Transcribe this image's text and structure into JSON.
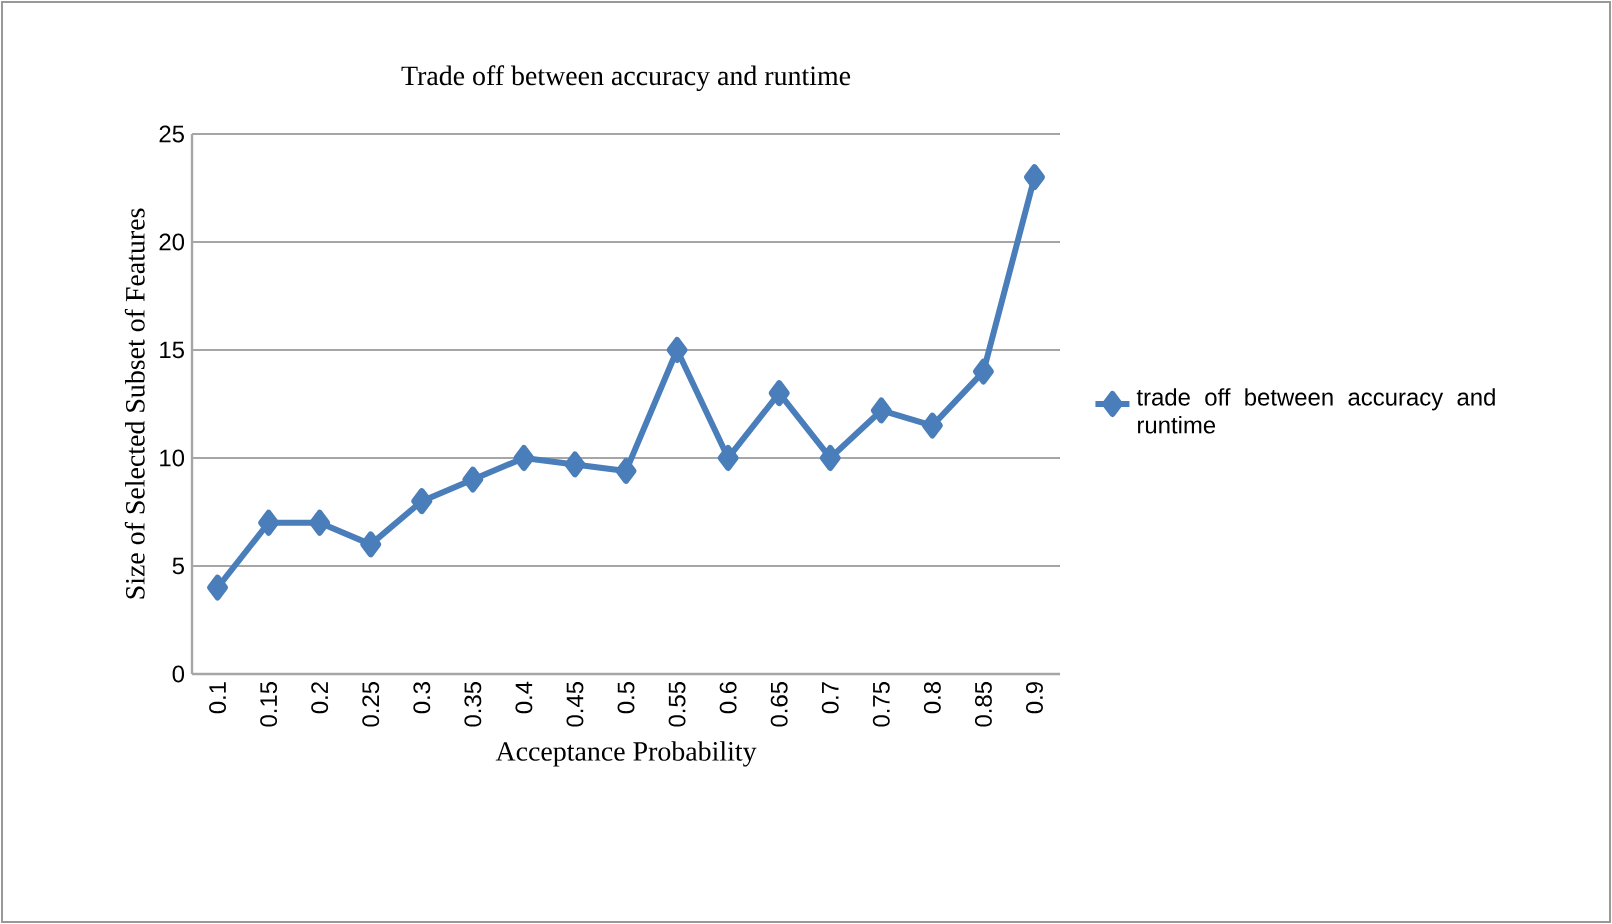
{
  "chart_data": {
    "type": "line",
    "title": "Trade off between accuracy and runtime",
    "xlabel": "Acceptance Probability",
    "ylabel": "Size of Selected Subset of Features",
    "categories": [
      "0.1",
      "0.15",
      "0.2",
      "0.25",
      "0.3",
      "0.35",
      "0.4",
      "0.45",
      "0.5",
      "0.55",
      "0.6",
      "0.65",
      "0.7",
      "0.75",
      "0.8",
      "0.85",
      "0.9"
    ],
    "series": [
      {
        "name": "trade off between accuracy and runtime",
        "color": "#4a7ebb",
        "values": [
          4,
          7,
          7,
          6,
          8,
          9,
          10,
          9.7,
          9.4,
          15,
          10,
          13,
          10,
          12.2,
          11.5,
          14,
          23
        ]
      }
    ],
    "ylim": [
      0,
      25
    ],
    "yticks": [
      0,
      5,
      10,
      15,
      20,
      25
    ],
    "grid": "y",
    "legend": "right",
    "marker": "diamond",
    "line_style": "solid"
  }
}
